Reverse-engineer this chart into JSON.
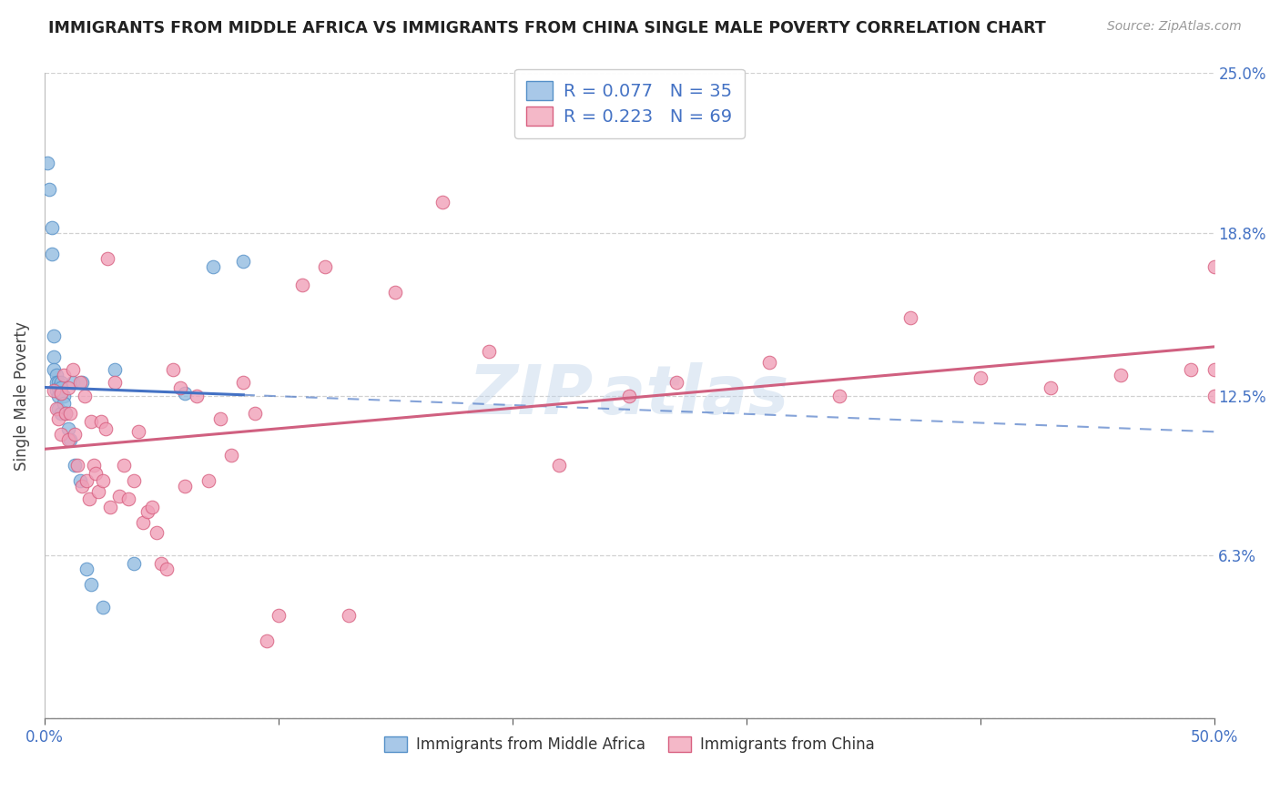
{
  "title": "IMMIGRANTS FROM MIDDLE AFRICA VS IMMIGRANTS FROM CHINA SINGLE MALE POVERTY CORRELATION CHART",
  "source": "Source: ZipAtlas.com",
  "ylabel": "Single Male Poverty",
  "xlim": [
    0.0,
    0.5
  ],
  "ylim": [
    0.0,
    0.25
  ],
  "xtick_values": [
    0.0,
    0.1,
    0.2,
    0.3,
    0.4,
    0.5
  ],
  "xticklabels": [
    "0.0%",
    "",
    "",
    "",
    "",
    "50.0%"
  ],
  "ytick_values": [
    0.0,
    0.063,
    0.125,
    0.188,
    0.25
  ],
  "ytick_labels": [
    "",
    "6.3%",
    "12.5%",
    "18.8%",
    "25.0%"
  ],
  "blue_R": 0.077,
  "blue_N": 35,
  "pink_R": 0.223,
  "pink_N": 69,
  "blue_scatter_color": "#92bce0",
  "blue_edge_color": "#5590c8",
  "pink_scatter_color": "#f0a0b8",
  "pink_edge_color": "#d86080",
  "blue_line_color": "#4472C4",
  "pink_line_color": "#d06080",
  "legend_blue_face": "#a8c8e8",
  "legend_pink_face": "#f4b8c8",
  "blue_scatter_x": [
    0.001,
    0.002,
    0.003,
    0.003,
    0.004,
    0.004,
    0.004,
    0.005,
    0.005,
    0.005,
    0.006,
    0.006,
    0.006,
    0.006,
    0.007,
    0.007,
    0.007,
    0.007,
    0.008,
    0.008,
    0.009,
    0.01,
    0.011,
    0.012,
    0.013,
    0.015,
    0.016,
    0.018,
    0.02,
    0.025,
    0.03,
    0.038,
    0.06,
    0.072,
    0.085
  ],
  "blue_scatter_y": [
    0.215,
    0.205,
    0.19,
    0.18,
    0.148,
    0.14,
    0.135,
    0.133,
    0.13,
    0.127,
    0.13,
    0.128,
    0.125,
    0.12,
    0.13,
    0.128,
    0.126,
    0.118,
    0.125,
    0.122,
    0.118,
    0.112,
    0.108,
    0.13,
    0.098,
    0.092,
    0.13,
    0.058,
    0.052,
    0.043,
    0.135,
    0.06,
    0.126,
    0.175,
    0.177
  ],
  "pink_scatter_x": [
    0.004,
    0.005,
    0.006,
    0.007,
    0.007,
    0.008,
    0.009,
    0.01,
    0.01,
    0.011,
    0.012,
    0.013,
    0.014,
    0.015,
    0.016,
    0.017,
    0.018,
    0.019,
    0.02,
    0.021,
    0.022,
    0.023,
    0.024,
    0.025,
    0.026,
    0.027,
    0.028,
    0.03,
    0.032,
    0.034,
    0.036,
    0.038,
    0.04,
    0.042,
    0.044,
    0.046,
    0.048,
    0.05,
    0.052,
    0.055,
    0.058,
    0.06,
    0.065,
    0.07,
    0.075,
    0.08,
    0.085,
    0.09,
    0.095,
    0.1,
    0.11,
    0.12,
    0.13,
    0.15,
    0.17,
    0.19,
    0.22,
    0.25,
    0.27,
    0.31,
    0.34,
    0.37,
    0.4,
    0.43,
    0.46,
    0.49,
    0.5,
    0.5,
    0.5
  ],
  "pink_scatter_y": [
    0.127,
    0.12,
    0.116,
    0.11,
    0.126,
    0.133,
    0.118,
    0.128,
    0.108,
    0.118,
    0.135,
    0.11,
    0.098,
    0.13,
    0.09,
    0.125,
    0.092,
    0.085,
    0.115,
    0.098,
    0.095,
    0.088,
    0.115,
    0.092,
    0.112,
    0.178,
    0.082,
    0.13,
    0.086,
    0.098,
    0.085,
    0.092,
    0.111,
    0.076,
    0.08,
    0.082,
    0.072,
    0.06,
    0.058,
    0.135,
    0.128,
    0.09,
    0.125,
    0.092,
    0.116,
    0.102,
    0.13,
    0.118,
    0.03,
    0.04,
    0.168,
    0.175,
    0.04,
    0.165,
    0.2,
    0.142,
    0.098,
    0.125,
    0.13,
    0.138,
    0.125,
    0.155,
    0.132,
    0.128,
    0.133,
    0.135,
    0.135,
    0.125,
    0.175
  ]
}
